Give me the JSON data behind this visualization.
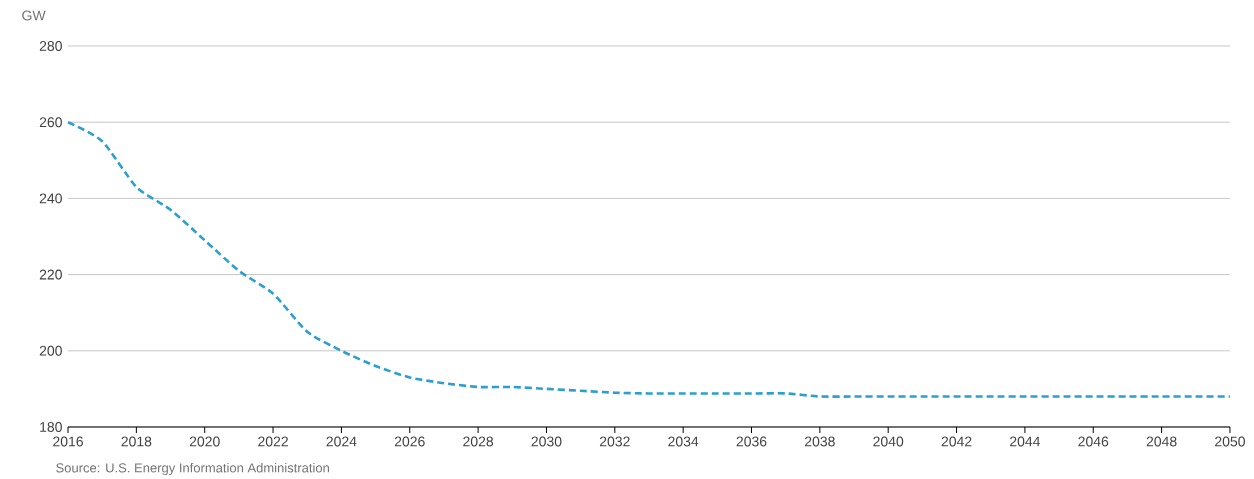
{
  "chart_data": {
    "type": "line",
    "ylabel": "GW",
    "annotations": [
      "Source: U.S. Energy Information Administration"
    ],
    "x": [
      2016,
      2017,
      2018,
      2019,
      2020,
      2021,
      2022,
      2023,
      2024,
      2025,
      2026,
      2027,
      2028,
      2029,
      2030,
      2031,
      2032,
      2033,
      2034,
      2035,
      2036,
      2037,
      2038,
      2039,
      2040,
      2041,
      2042,
      2043,
      2044,
      2045,
      2046,
      2047,
      2048,
      2049,
      2050
    ],
    "series": [
      {
        "color": "#2a9fd0",
        "values": [
          260,
          255,
          243,
          237,
          229,
          221,
          215,
          205,
          200,
          196,
          193,
          191.5,
          190.5,
          190.5,
          190,
          189.5,
          189,
          188.8,
          188.8,
          188.8,
          188.8,
          188.8,
          188,
          188,
          188,
          188,
          188,
          188,
          188,
          188,
          188,
          188,
          188,
          188,
          188
        ]
      }
    ],
    "xlim": [
      2016,
      2050
    ],
    "xticks": [
      2016,
      2018,
      2020,
      2022,
      2024,
      2026,
      2028,
      2030,
      2032,
      2034,
      2036,
      2038,
      2040,
      2042,
      2044,
      2046,
      2048,
      2050
    ],
    "ylim": [
      180,
      280
    ],
    "yticks": [
      180,
      200,
      220,
      240,
      260,
      280
    ],
    "grid": "y",
    "line_style": "dashed",
    "marker": "none"
  }
}
